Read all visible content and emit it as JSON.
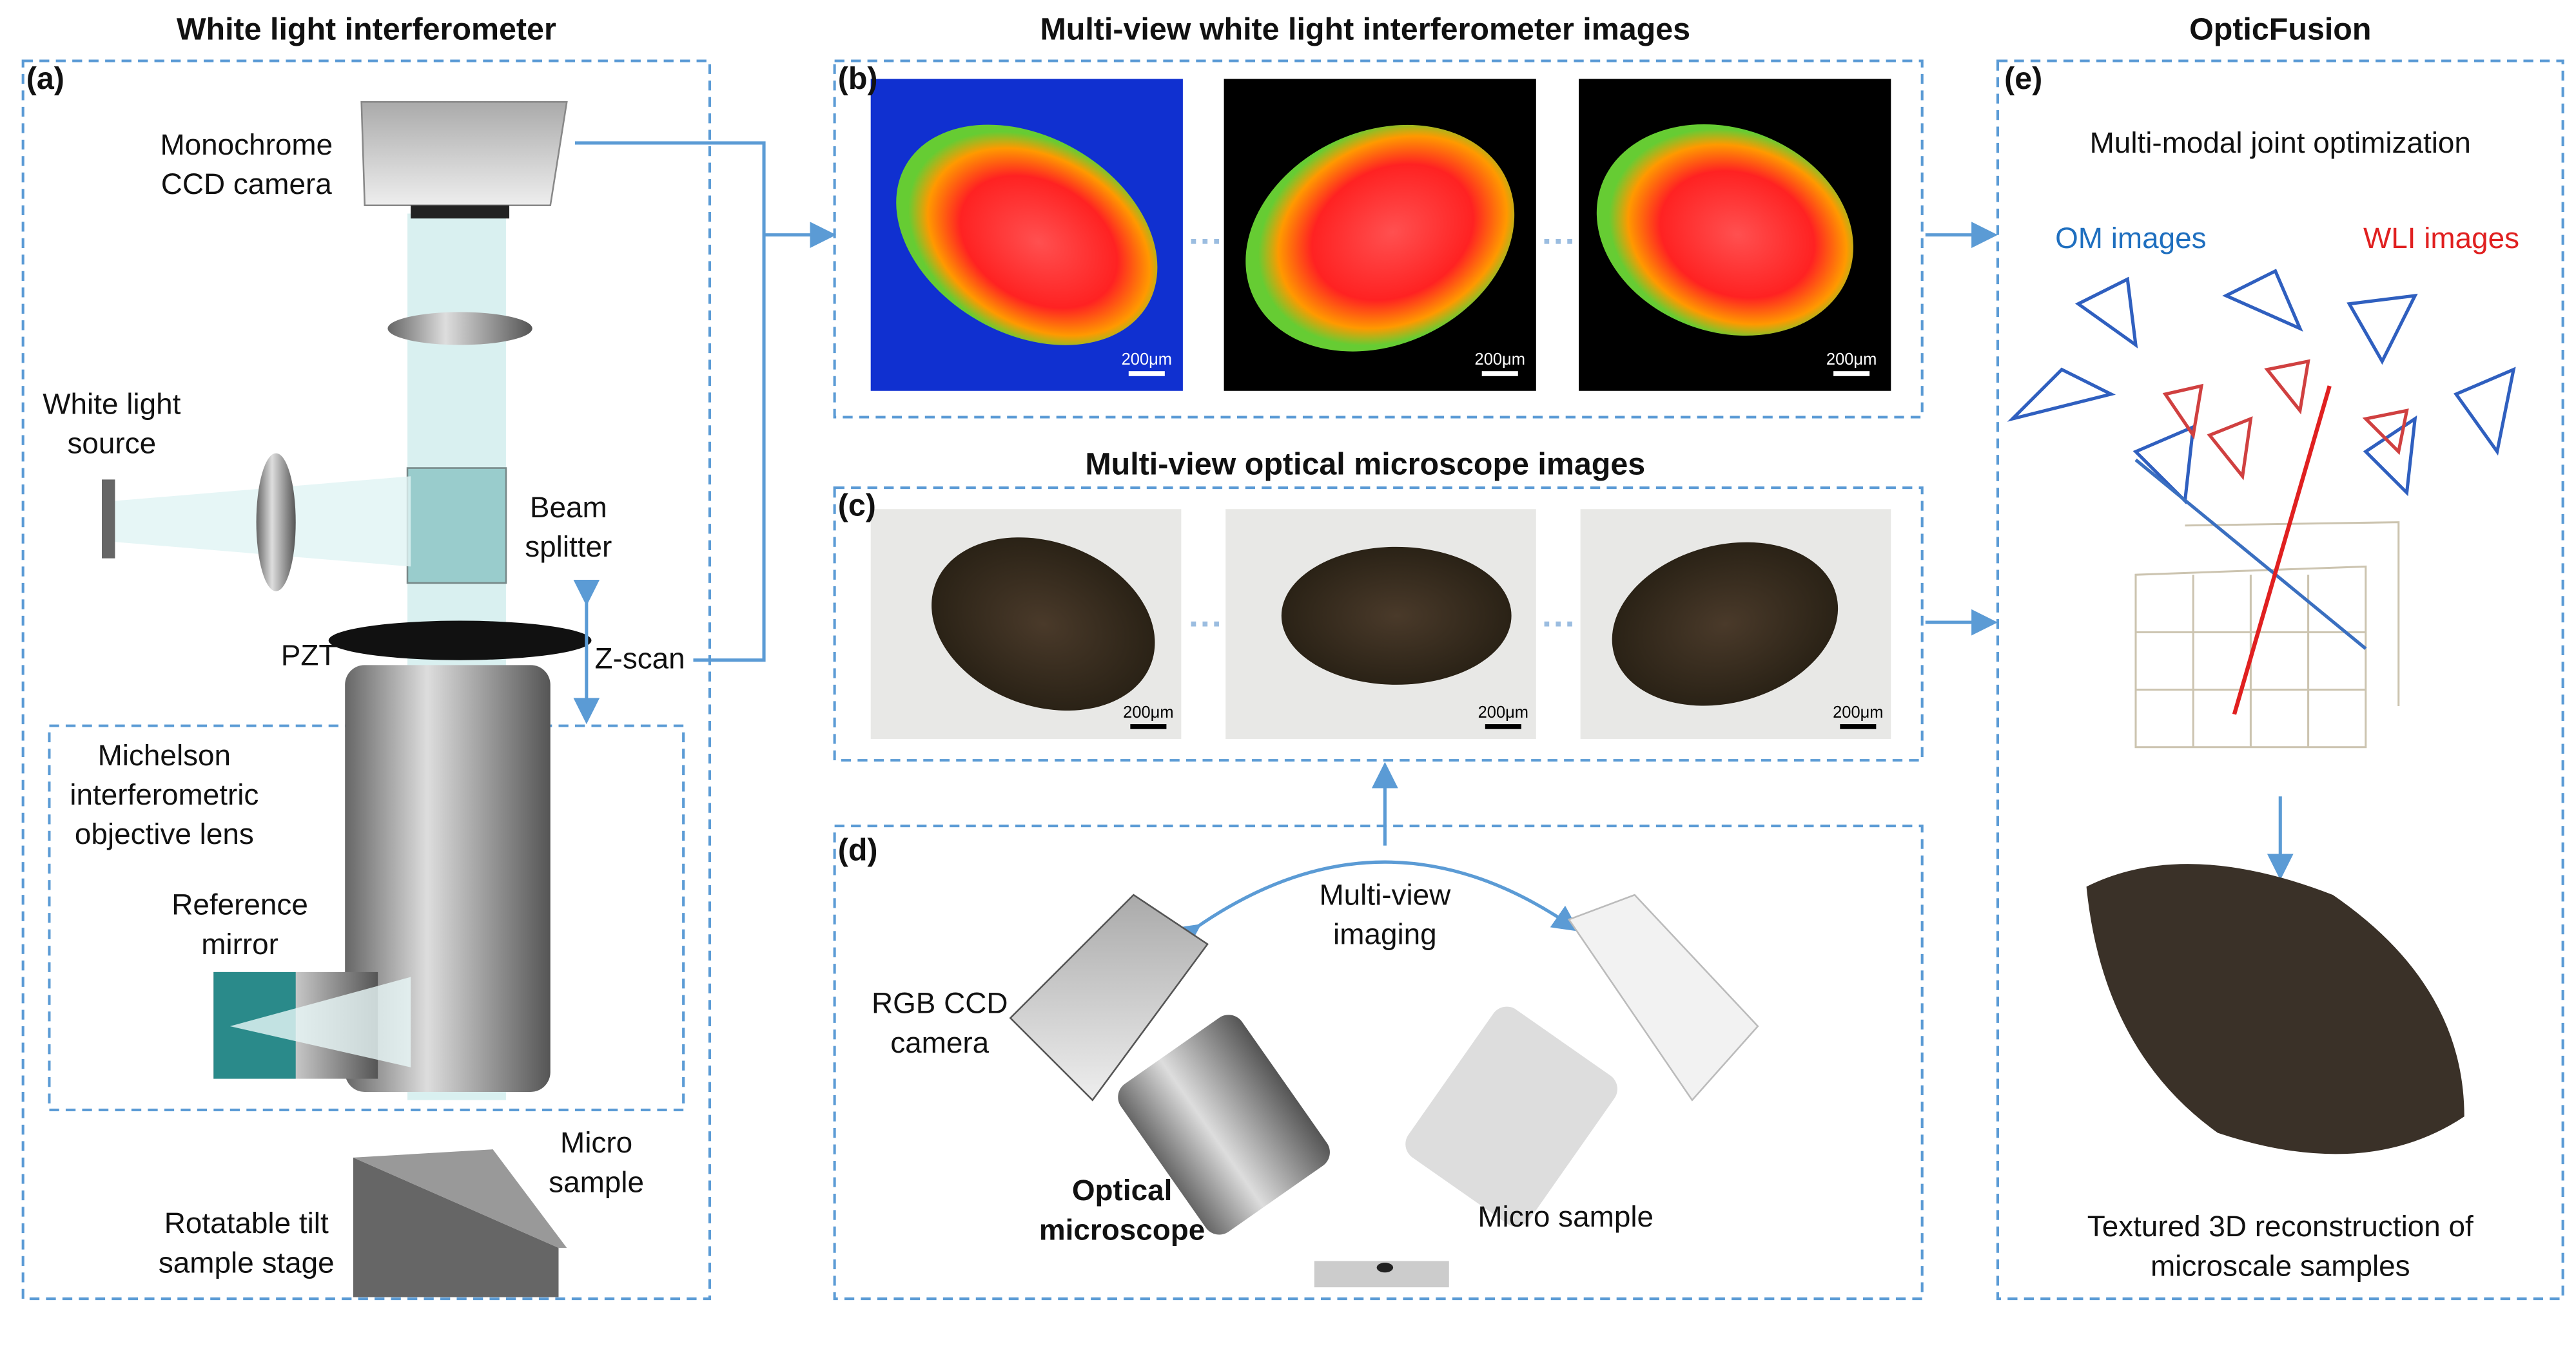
{
  "panels": [
    {
      "title": "White light interferometer",
      "label": "(a)",
      "annotations": [
        [
          "Monochrome",
          "CCD camera"
        ],
        [
          "White light",
          "source"
        ],
        [
          "Beam",
          "splitter"
        ],
        [
          "PZT"
        ],
        [
          "Z-scan"
        ],
        [
          "Michelson",
          "interferometric",
          "objective lens"
        ],
        [
          "Reference",
          "mirror"
        ],
        [
          "Micro",
          "sample"
        ],
        [
          "Rotatable tilt",
          "sample stage"
        ]
      ]
    },
    {
      "title": "Multi-view white light interferometer images",
      "label": "(b)",
      "scale_bars": [
        "200μm",
        "200μm",
        "200μm"
      ]
    },
    {
      "title": "Multi-view optical microscope images",
      "label": "(c)",
      "scale_bars": [
        "200μm",
        "200μm",
        "200μm"
      ]
    },
    {
      "label": "(d)",
      "annotations": [
        [
          "Multi-view",
          "imaging"
        ],
        [
          "RGB CCD",
          "camera"
        ],
        [
          "Optical",
          "microscope"
        ],
        [
          "Micro sample"
        ]
      ]
    },
    {
      "title": "OpticFusion",
      "label": "(e)",
      "annotations": [
        [
          "Multi-modal joint optimization"
        ],
        [
          "OM images"
        ],
        [
          "WLI images"
        ],
        [
          "Textured 3D reconstruction of",
          "microscale samples"
        ]
      ]
    }
  ]
}
